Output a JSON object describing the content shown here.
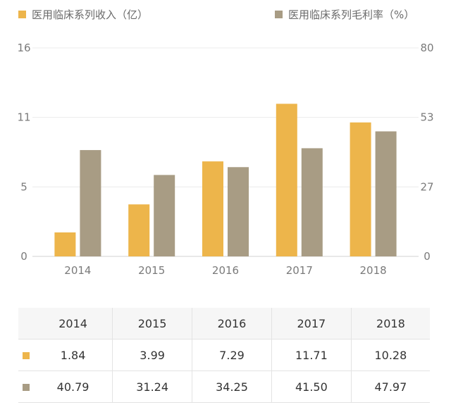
{
  "legend": {
    "revenue_label": "医用临床系列收入（亿）",
    "margin_label": "医用临床系列毛利率（%）"
  },
  "colors": {
    "revenue": "#EDB54B",
    "margin": "#A89C84"
  },
  "chart_data": {
    "type": "bar",
    "categories": [
      "2014",
      "2015",
      "2016",
      "2017",
      "2018"
    ],
    "series": [
      {
        "name": "医用临床系列收入（亿）",
        "axis": "left",
        "values": [
          1.84,
          3.99,
          7.29,
          11.71,
          10.28
        ]
      },
      {
        "name": "医用临床系列毛利率（%）",
        "axis": "right",
        "values": [
          40.79,
          31.24,
          34.25,
          41.5,
          47.97
        ]
      }
    ],
    "y_left": {
      "range": [
        0,
        16
      ],
      "ticks": [
        "0",
        "5",
        "11",
        "16"
      ]
    },
    "y_right": {
      "range": [
        0,
        80
      ],
      "ticks": [
        "0",
        "27",
        "53",
        "80"
      ]
    },
    "grid": true,
    "legend_position": "top"
  },
  "table": {
    "years": [
      "2014",
      "2015",
      "2016",
      "2017",
      "2018"
    ],
    "revenue_row": [
      "1.84",
      "3.99",
      "7.29",
      "11.71",
      "10.28"
    ],
    "margin_row": [
      "40.79",
      "31.24",
      "34.25",
      "41.50",
      "47.97"
    ]
  }
}
